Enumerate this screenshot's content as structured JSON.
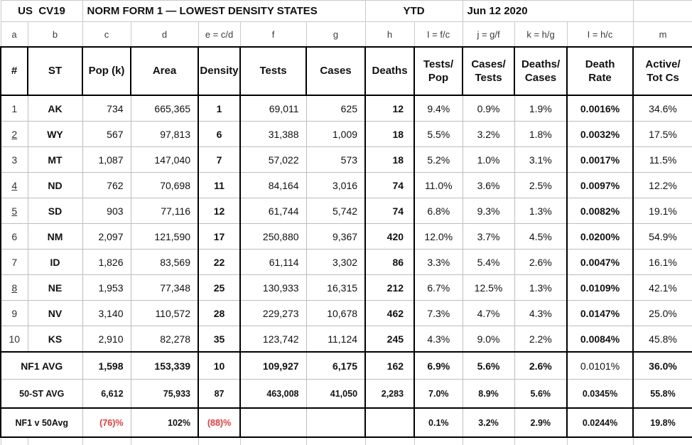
{
  "title": {
    "left": "US  CV19",
    "form": "NORM FORM 1 — LOWEST DENSITY STATES",
    "ytd": "YTD",
    "date": "Jun 12 2020"
  },
  "letters": [
    "a",
    "b",
    "c",
    "d",
    "e = c/d",
    "f",
    "g",
    "h",
    "I = f/c",
    "j = g/f",
    "k = h/g",
    "I = h/c",
    "m"
  ],
  "headers": {
    "num": "#",
    "st": "ST",
    "pop": "Pop (k)",
    "area": "Area",
    "density": "Density",
    "tests": "Tests",
    "cases": "Cases",
    "deaths": "Deaths",
    "tests_pop": "Tests/\nPop",
    "cases_tests": "Cases/\nTests",
    "deaths_cases": "Deaths/\nCases",
    "death_rate": "Death\nRate",
    "active": "Active/\nTot Cs"
  },
  "rows": [
    {
      "num": "1",
      "num_underlined": false,
      "st": "AK",
      "pop": "734",
      "area": "665,365",
      "density": "1",
      "tests": "69,011",
      "cases": "625",
      "deaths": "12",
      "tests_pop": "9.4%",
      "cases_tests": "0.9%",
      "deaths_cases": "1.9%",
      "death_rate": "0.0016%",
      "active": "34.6%"
    },
    {
      "num": "2",
      "num_underlined": true,
      "st": "WY",
      "pop": "567",
      "area": "97,813",
      "density": "6",
      "tests": "31,388",
      "cases": "1,009",
      "deaths": "18",
      "tests_pop": "5.5%",
      "cases_tests": "3.2%",
      "deaths_cases": "1.8%",
      "death_rate": "0.0032%",
      "active": "17.5%"
    },
    {
      "num": "3",
      "num_underlined": false,
      "st": "MT",
      "pop": "1,087",
      "area": "147,040",
      "density": "7",
      "tests": "57,022",
      "cases": "573",
      "deaths": "18",
      "tests_pop": "5.2%",
      "cases_tests": "1.0%",
      "deaths_cases": "3.1%",
      "death_rate": "0.0017%",
      "active": "11.5%"
    },
    {
      "num": "4",
      "num_underlined": true,
      "st": "ND",
      "pop": "762",
      "area": "70,698",
      "density": "11",
      "tests": "84,164",
      "cases": "3,016",
      "deaths": "74",
      "tests_pop": "11.0%",
      "cases_tests": "3.6%",
      "deaths_cases": "2.5%",
      "death_rate": "0.0097%",
      "active": "12.2%"
    },
    {
      "num": "5",
      "num_underlined": true,
      "st": "SD",
      "pop": "903",
      "area": "77,116",
      "density": "12",
      "tests": "61,744",
      "cases": "5,742",
      "deaths": "74",
      "tests_pop": "6.8%",
      "cases_tests": "9.3%",
      "deaths_cases": "1.3%",
      "death_rate": "0.0082%",
      "active": "19.1%"
    },
    {
      "num": "6",
      "num_underlined": false,
      "st": "NM",
      "pop": "2,097",
      "area": "121,590",
      "density": "17",
      "tests": "250,880",
      "cases": "9,367",
      "deaths": "420",
      "tests_pop": "12.0%",
      "cases_tests": "3.7%",
      "deaths_cases": "4.5%",
      "death_rate": "0.0200%",
      "active": "54.9%"
    },
    {
      "num": "7",
      "num_underlined": false,
      "st": "ID",
      "pop": "1,826",
      "area": "83,569",
      "density": "22",
      "tests": "61,114",
      "cases": "3,302",
      "deaths": "86",
      "tests_pop": "3.3%",
      "cases_tests": "5.4%",
      "deaths_cases": "2.6%",
      "death_rate": "0.0047%",
      "active": "16.1%"
    },
    {
      "num": "8",
      "num_underlined": true,
      "st": "NE",
      "pop": "1,953",
      "area": "77,348",
      "density": "25",
      "tests": "130,933",
      "cases": "16,315",
      "deaths": "212",
      "tests_pop": "6.7%",
      "cases_tests": "12.5%",
      "deaths_cases": "1.3%",
      "death_rate": "0.0109%",
      "active": "42.1%"
    },
    {
      "num": "9",
      "num_underlined": false,
      "st": "NV",
      "pop": "3,140",
      "area": "110,572",
      "density": "28",
      "tests": "229,273",
      "cases": "10,678",
      "deaths": "462",
      "tests_pop": "7.3%",
      "cases_tests": "4.7%",
      "deaths_cases": "4.3%",
      "death_rate": "0.0147%",
      "active": "25.0%"
    },
    {
      "num": "10",
      "num_underlined": false,
      "st": "KS",
      "pop": "2,910",
      "area": "82,278",
      "density": "35",
      "tests": "123,742",
      "cases": "11,124",
      "deaths": "245",
      "tests_pop": "4.3%",
      "cases_tests": "9.0%",
      "deaths_cases": "2.2%",
      "death_rate": "0.0084%",
      "active": "45.8%"
    }
  ],
  "summary": [
    {
      "label": "NF1 AVG",
      "pop": "1,598",
      "area": "153,339",
      "density": "10",
      "tests": "109,927",
      "cases": "6,175",
      "deaths": "162",
      "tests_pop": "6.9%",
      "cases_tests": "5.6%",
      "deaths_cases": "2.6%",
      "death_rate": "0.0101%",
      "active": "36.0%"
    },
    {
      "label": "50-ST AVG",
      "pop": "6,612",
      "area": "75,933",
      "density": "87",
      "tests": "463,008",
      "cases": "41,050",
      "deaths": "2,283",
      "tests_pop": "7.0%",
      "cases_tests": "8.9%",
      "deaths_cases": "5.6%",
      "death_rate": "0.0345%",
      "active": "55.8%"
    },
    {
      "label": "NF1 v 50Avg",
      "pop": "(76)%",
      "area": "102%",
      "density": "(88)%",
      "tests": "",
      "cases": "",
      "deaths": "",
      "tests_pop": "0.1%",
      "cases_tests": "3.2%",
      "deaths_cases": "2.9%",
      "death_rate": "0.0244%",
      "active": "19.8%"
    }
  ],
  "colors": {
    "highlight_yellow": "#f7ee53",
    "negative_red": "#e8393a"
  }
}
